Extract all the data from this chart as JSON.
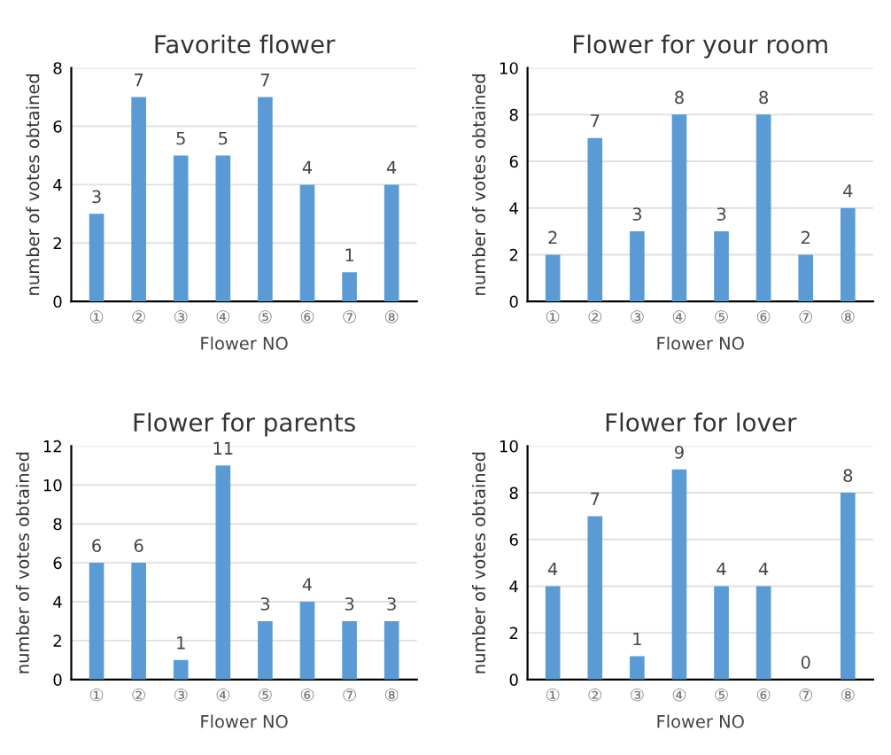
{
  "chart_data": [
    {
      "type": "bar",
      "title": "Favorite flower",
      "xlabel": "Flower NO",
      "ylabel": "number of votes obtained",
      "categories": [
        "①",
        "②",
        "③",
        "④",
        "⑤",
        "⑥",
        "⑦",
        "⑧"
      ],
      "values": [
        3,
        7,
        5,
        5,
        7,
        4,
        1,
        4
      ],
      "color": "#5b9bd5",
      "ylim": [
        0,
        8
      ],
      "yticks": [
        0,
        2,
        4,
        6,
        8
      ],
      "grid": "y",
      "data_labels": true
    },
    {
      "type": "bar",
      "title": "Flower for your room",
      "xlabel": "Flower NO",
      "ylabel": "number of votes obtained",
      "categories": [
        "①",
        "②",
        "③",
        "④",
        "⑤",
        "⑥",
        "⑦",
        "⑧"
      ],
      "values": [
        2,
        7,
        3,
        8,
        3,
        8,
        2,
        4
      ],
      "color": "#5b9bd5",
      "ylim": [
        0,
        10
      ],
      "yticks": [
        0,
        2,
        4,
        6,
        8,
        10
      ],
      "grid": "y",
      "data_labels": true
    },
    {
      "type": "bar",
      "title": "Flower for parents",
      "xlabel": "Flower NO",
      "ylabel": "number of votes obtained",
      "categories": [
        "①",
        "②",
        "③",
        "④",
        "⑤",
        "⑥",
        "⑦",
        "⑧"
      ],
      "values": [
        6,
        6,
        1,
        11,
        3,
        4,
        3,
        3
      ],
      "color": "#5b9bd5",
      "ylim": [
        0,
        12
      ],
      "yticks": [
        0,
        2,
        4,
        6,
        8,
        10,
        12
      ],
      "grid": "y",
      "data_labels": true
    },
    {
      "type": "bar",
      "title": "Flower for lover",
      "xlabel": "Flower NO",
      "ylabel": "number of votes obtained",
      "categories": [
        "①",
        "②",
        "③",
        "④",
        "⑤",
        "⑥",
        "⑦",
        "⑧"
      ],
      "values": [
        4,
        7,
        1,
        9,
        4,
        4,
        0,
        8
      ],
      "color": "#5b9bd5",
      "ylim": [
        0,
        10
      ],
      "yticks": [
        0,
        2,
        4,
        6,
        8,
        10
      ],
      "grid": "y",
      "data_labels": true
    }
  ]
}
